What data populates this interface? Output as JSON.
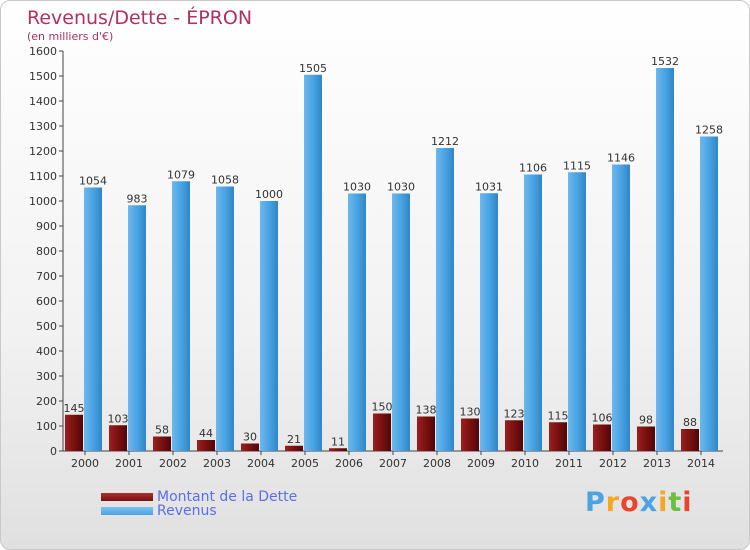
{
  "header": {
    "title": "Revenus/Dette - ÉPRON",
    "subtitle": "(en milliers d'€)"
  },
  "colors": {
    "dette": "#7a1010",
    "revenus": "#4aa3e2",
    "title": "#b03060"
  },
  "chart_data": {
    "type": "bar",
    "categories": [
      "2000",
      "2001",
      "2002",
      "2003",
      "2004",
      "2005",
      "2006",
      "2007",
      "2008",
      "2009",
      "2010",
      "2011",
      "2012",
      "2013",
      "2014"
    ],
    "series": [
      {
        "name": "Montant de la Dette",
        "values": [
          145,
          103,
          58,
          44,
          30,
          21,
          11,
          150,
          138,
          130,
          123,
          115,
          106,
          98,
          88
        ]
      },
      {
        "name": "Revenus",
        "values": [
          1054,
          983,
          1079,
          1058,
          1000,
          1505,
          1030,
          1030,
          1212,
          1031,
          1106,
          1115,
          1146,
          1532,
          1258
        ]
      }
    ],
    "title": "Revenus/Dette - ÉPRON",
    "ylabel": "(en milliers d'€)",
    "xlabel": "",
    "ylim": [
      0,
      1600
    ],
    "ytick_step": 100,
    "grid": false,
    "legend_position": "bottom-left"
  },
  "legend": {
    "items": [
      {
        "label": "Montant de la Dette"
      },
      {
        "label": "Revenus"
      }
    ]
  },
  "logo": {
    "letters": [
      "P",
      "r",
      "o",
      "x",
      "i",
      "t",
      "i"
    ],
    "colors": [
      "#4aa3e2",
      "#f5a623",
      "#e8452c",
      "#4aa3e2",
      "#f5a623",
      "#6cbf3a",
      "#e8452c"
    ]
  }
}
